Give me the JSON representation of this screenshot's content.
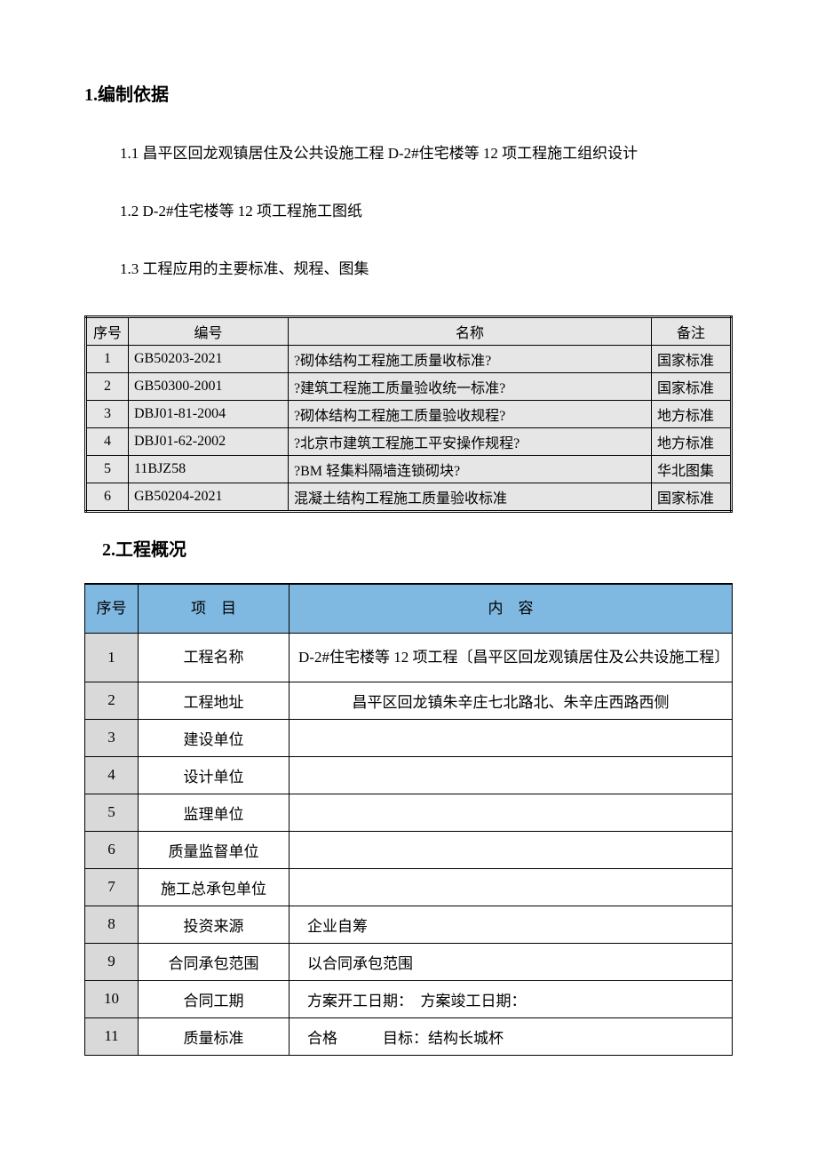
{
  "section1": {
    "title": "1.编制依据",
    "items": [
      "1.1 昌平区回龙观镇居住及公共设施工程 D-2#住宅楼等 12 项工程施工组织设计",
      "1.2 D-2#住宅楼等 12 项工程施工图纸",
      "1.3 工程应用的主要标准、规程、图集"
    ]
  },
  "table1": {
    "headers": {
      "seq": "序号",
      "code": "编号",
      "name": "名称",
      "remark": "备注"
    },
    "rows": [
      {
        "seq": "1",
        "code": "GB50203-2021",
        "name": "?砌体结构工程施工质量收标准?",
        "remark": "国家标准"
      },
      {
        "seq": "2",
        "code": "GB50300-2001",
        "name": "?建筑工程施工质量验收统一标准?",
        "remark": "国家标准"
      },
      {
        "seq": "3",
        "code": "DBJ01-81-2004",
        "name": "?砌体结构工程施工质量验收规程?",
        "remark": "地方标准"
      },
      {
        "seq": "4",
        "code": "DBJ01-62-2002",
        "name": "?北京市建筑工程施工平安操作规程?",
        "remark": "地方标准"
      },
      {
        "seq": "5",
        "code": "11BJZ58",
        "name": "?BM 轻集料隔墙连锁砌块?",
        "remark": "华北图集"
      },
      {
        "seq": "6",
        "code": "GB50204-2021",
        "name": "混凝土结构工程施工质量验收标准",
        "remark": "国家标准"
      }
    ]
  },
  "section2": {
    "title": "2.工程概况"
  },
  "table2": {
    "headers": {
      "seq": "序号",
      "item": "项　目",
      "content": "内　容"
    },
    "rows": [
      {
        "seq": "1",
        "item": "工程名称",
        "content": "D-2#住宅楼等 12 项工程〔昌平区回龙观镇居住及公共设施工程〕",
        "tall": true
      },
      {
        "seq": "2",
        "item": "工程地址",
        "content": "昌平区回龙镇朱辛庄七北路北、朱辛庄西路西侧"
      },
      {
        "seq": "3",
        "item": "建设单位",
        "content": ""
      },
      {
        "seq": "4",
        "item": "设计单位",
        "content": ""
      },
      {
        "seq": "5",
        "item": "监理单位",
        "content": ""
      },
      {
        "seq": "6",
        "item": "质量监督单位",
        "content": ""
      },
      {
        "seq": "7",
        "item": "施工总承包单位",
        "content": ""
      },
      {
        "seq": "8",
        "item": "投资来源",
        "content": "企业自筹",
        "align": "left"
      },
      {
        "seq": "9",
        "item": "合同承包范围",
        "content": "以合同承包范围",
        "align": "left"
      },
      {
        "seq": "10",
        "item": "合同工期",
        "content": "方案开工日期：　方案竣工日期：",
        "align": "left"
      },
      {
        "seq": "11",
        "item": "质量标准",
        "content": "合格　　　目标：结构长城杯",
        "align": "left"
      }
    ]
  }
}
